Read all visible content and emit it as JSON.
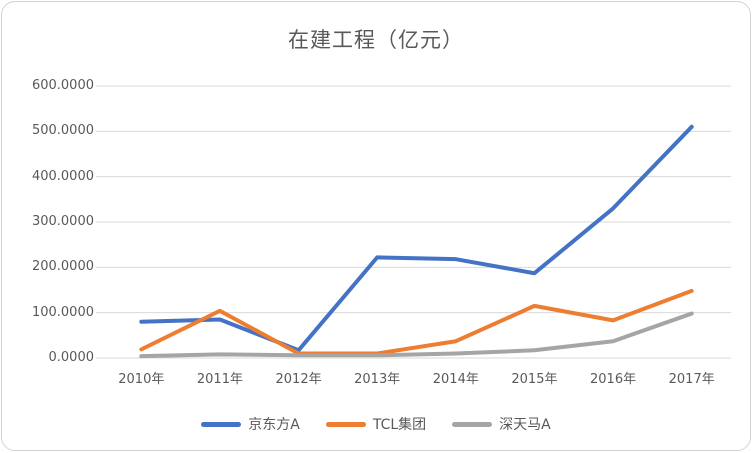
{
  "chart_data": {
    "type": "line",
    "title": "在建工程（亿元）",
    "categories": [
      "2010年",
      "2011年",
      "2012年",
      "2013年",
      "2014年",
      "2015年",
      "2016年",
      "2017年"
    ],
    "series": [
      {
        "name": "京东方A",
        "color": "#4472C4",
        "values": [
          80,
          85,
          17,
          222,
          218,
          187,
          330,
          510
        ]
      },
      {
        "name": "TCL集团",
        "color": "#ED7D31",
        "values": [
          19,
          104,
          10,
          10,
          37,
          115,
          83,
          148
        ]
      },
      {
        "name": "深天马A",
        "color": "#A5A5A5",
        "values": [
          4,
          8,
          6,
          6,
          10,
          17,
          37,
          98
        ]
      }
    ],
    "y_ticks": [
      "600.0000",
      "500.0000",
      "400.0000",
      "300.0000",
      "200.0000",
      "100.0000",
      "0.0000"
    ],
    "ylim": [
      0,
      600
    ],
    "xlabel": "",
    "ylabel": "",
    "grid": true,
    "legend_position": "bottom",
    "gridline_color": "#D9D9D9",
    "text_color": "#595959",
    "line_width": 4
  }
}
